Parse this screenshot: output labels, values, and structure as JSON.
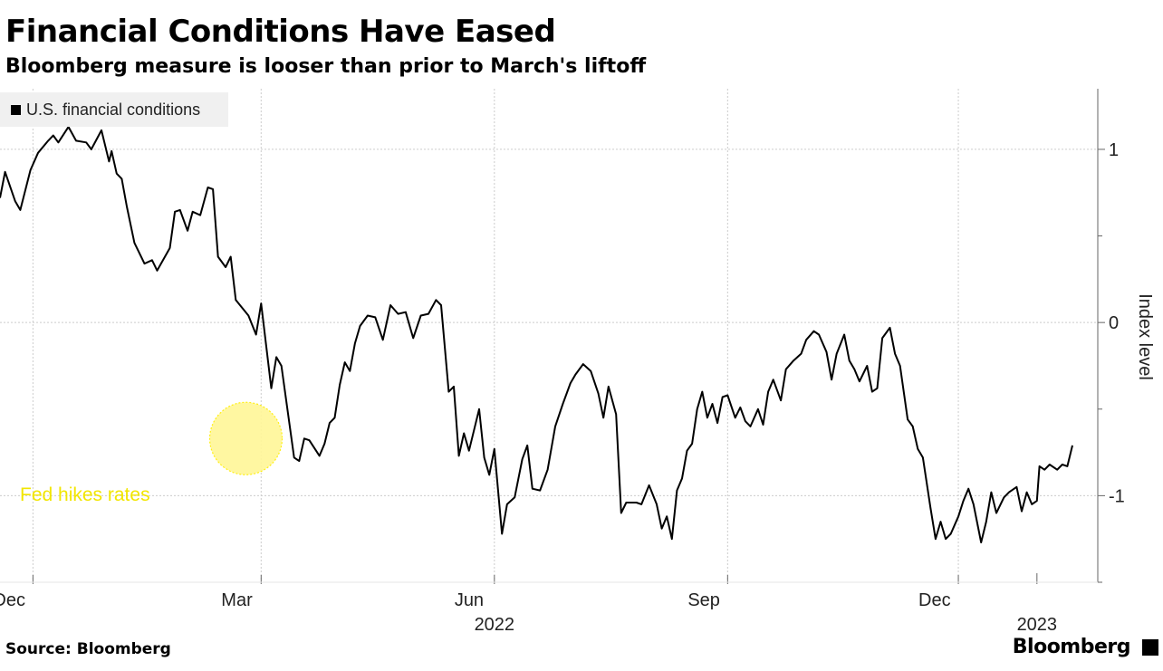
{
  "title": "Financial Conditions Have Eased",
  "subtitle": "Bloomberg measure is looser than prior to March's liftoff",
  "source": "Source: Bloomberg",
  "brand": "Bloomberg",
  "colors": {
    "line": "#000000",
    "annotation": "#ffee00",
    "grid": "#cccccc"
  },
  "chart_data": {
    "type": "line",
    "title": "Financial Conditions Have Eased",
    "subtitle": "Bloomberg measure is looser than prior to March's liftoff",
    "ylabel": "Index level",
    "ylim": [
      -1.5,
      1.35
    ],
    "yticks": [
      1,
      0,
      -1
    ],
    "ytick_labels": [
      "1",
      "0",
      "-1"
    ],
    "xlim": [
      "2021-11-18",
      "2023-01-25"
    ],
    "xticks": [
      {
        "date": "2021-12-01",
        "label": "Dec"
      },
      {
        "date": "2022-03-01",
        "label": "Mar"
      },
      {
        "date": "2022-06-01",
        "label": "Jun"
      },
      {
        "date": "2022-09-01",
        "label": "Sep"
      },
      {
        "date": "2022-12-01",
        "label": "Dec"
      }
    ],
    "year_labels": [
      {
        "date": "2022-06-01",
        "label": "2022"
      },
      {
        "date": "2023-01-01",
        "label": "2023"
      }
    ],
    "grid": true,
    "legend_position": "top-left",
    "annotation": {
      "label": "Fed hikes rates",
      "date": "2022-02-23",
      "value": -0.67
    },
    "series": [
      {
        "name": "U.S. financial conditions",
        "points": [
          [
            "2021-11-18",
            0.72
          ],
          [
            "2021-11-20",
            0.87
          ],
          [
            "2021-11-24",
            0.7
          ],
          [
            "2021-11-26",
            0.65
          ],
          [
            "2021-11-30",
            0.88
          ],
          [
            "2021-12-03",
            0.98
          ],
          [
            "2021-12-07",
            1.05
          ],
          [
            "2021-12-09",
            1.08
          ],
          [
            "2021-12-11",
            1.04
          ],
          [
            "2021-12-15",
            1.13
          ],
          [
            "2021-12-18",
            1.05
          ],
          [
            "2021-12-22",
            1.04
          ],
          [
            "2021-12-24",
            1.0
          ],
          [
            "2021-12-28",
            1.11
          ],
          [
            "2021-12-31",
            0.93
          ],
          [
            "2022-01-01",
            0.99
          ],
          [
            "2022-01-03",
            0.86
          ],
          [
            "2022-01-05",
            0.83
          ],
          [
            "2022-01-07",
            0.67
          ],
          [
            "2022-01-10",
            0.46
          ],
          [
            "2022-01-14",
            0.34
          ],
          [
            "2022-01-17",
            0.36
          ],
          [
            "2022-01-19",
            0.3
          ],
          [
            "2022-01-24",
            0.43
          ],
          [
            "2022-01-26",
            0.64
          ],
          [
            "2022-01-28",
            0.65
          ],
          [
            "2022-01-31",
            0.53
          ],
          [
            "2022-02-02",
            0.64
          ],
          [
            "2022-02-05",
            0.62
          ],
          [
            "2022-02-08",
            0.78
          ],
          [
            "2022-02-10",
            0.77
          ],
          [
            "2022-02-12",
            0.38
          ],
          [
            "2022-02-15",
            0.32
          ],
          [
            "2022-02-17",
            0.38
          ],
          [
            "2022-02-19",
            0.13
          ],
          [
            "2022-02-24",
            0.04
          ],
          [
            "2022-02-27",
            -0.07
          ],
          [
            "2022-03-01",
            0.11
          ],
          [
            "2022-03-05",
            -0.38
          ],
          [
            "2022-03-07",
            -0.2
          ],
          [
            "2022-03-09",
            -0.25
          ],
          [
            "2022-03-14",
            -0.78
          ],
          [
            "2022-03-16",
            -0.8
          ],
          [
            "2022-03-18",
            -0.67
          ],
          [
            "2022-03-20",
            -0.68
          ],
          [
            "2022-03-24",
            -0.77
          ],
          [
            "2022-03-26",
            -0.7
          ],
          [
            "2022-03-28",
            -0.58
          ],
          [
            "2022-03-30",
            -0.55
          ],
          [
            "2022-04-01",
            -0.36
          ],
          [
            "2022-04-03",
            -0.23
          ],
          [
            "2022-04-05",
            -0.28
          ],
          [
            "2022-04-07",
            -0.12
          ],
          [
            "2022-04-09",
            -0.02
          ],
          [
            "2022-04-12",
            0.04
          ],
          [
            "2022-04-15",
            0.03
          ],
          [
            "2022-04-18",
            -0.1
          ],
          [
            "2022-04-21",
            0.1
          ],
          [
            "2022-04-24",
            0.05
          ],
          [
            "2022-04-27",
            0.06
          ],
          [
            "2022-04-30",
            -0.09
          ],
          [
            "2022-05-03",
            0.04
          ],
          [
            "2022-05-06",
            0.05
          ],
          [
            "2022-05-09",
            0.13
          ],
          [
            "2022-05-11",
            0.1
          ],
          [
            "2022-05-14",
            -0.4
          ],
          [
            "2022-05-16",
            -0.37
          ],
          [
            "2022-05-18",
            -0.77
          ],
          [
            "2022-05-20",
            -0.64
          ],
          [
            "2022-05-22",
            -0.74
          ],
          [
            "2022-05-26",
            -0.5
          ],
          [
            "2022-05-28",
            -0.78
          ],
          [
            "2022-05-30",
            -0.88
          ],
          [
            "2022-06-01",
            -0.73
          ],
          [
            "2022-06-04",
            -1.22
          ],
          [
            "2022-06-06",
            -1.05
          ],
          [
            "2022-06-09",
            -1.01
          ],
          [
            "2022-06-12",
            -0.79
          ],
          [
            "2022-06-14",
            -0.71
          ],
          [
            "2022-06-16",
            -0.96
          ],
          [
            "2022-06-19",
            -0.97
          ],
          [
            "2022-06-22",
            -0.85
          ],
          [
            "2022-06-25",
            -0.6
          ],
          [
            "2022-06-28",
            -0.47
          ],
          [
            "2022-07-01",
            -0.35
          ],
          [
            "2022-07-03",
            -0.3
          ],
          [
            "2022-07-06",
            -0.24
          ],
          [
            "2022-07-09",
            -0.28
          ],
          [
            "2022-07-12",
            -0.41
          ],
          [
            "2022-07-14",
            -0.55
          ],
          [
            "2022-07-16",
            -0.37
          ],
          [
            "2022-07-19",
            -0.53
          ],
          [
            "2022-07-21",
            -1.1
          ],
          [
            "2022-07-23",
            -1.04
          ],
          [
            "2022-07-27",
            -1.04
          ],
          [
            "2022-07-29",
            -1.05
          ],
          [
            "2022-08-01",
            -0.94
          ],
          [
            "2022-08-04",
            -1.05
          ],
          [
            "2022-08-06",
            -1.19
          ],
          [
            "2022-08-08",
            -1.12
          ],
          [
            "2022-08-10",
            -1.25
          ],
          [
            "2022-08-12",
            -0.97
          ],
          [
            "2022-08-14",
            -0.9
          ],
          [
            "2022-08-16",
            -0.74
          ],
          [
            "2022-08-18",
            -0.7
          ],
          [
            "2022-08-20",
            -0.5
          ],
          [
            "2022-08-22",
            -0.4
          ],
          [
            "2022-08-24",
            -0.55
          ],
          [
            "2022-08-26",
            -0.47
          ],
          [
            "2022-08-28",
            -0.58
          ],
          [
            "2022-08-30",
            -0.43
          ],
          [
            "2022-09-01",
            -0.42
          ],
          [
            "2022-09-04",
            -0.55
          ],
          [
            "2022-09-06",
            -0.49
          ],
          [
            "2022-09-08",
            -0.57
          ],
          [
            "2022-09-10",
            -0.6
          ],
          [
            "2022-09-13",
            -0.5
          ],
          [
            "2022-09-15",
            -0.59
          ],
          [
            "2022-09-17",
            -0.4
          ],
          [
            "2022-09-19",
            -0.33
          ],
          [
            "2022-09-22",
            -0.45
          ],
          [
            "2022-09-24",
            -0.27
          ],
          [
            "2022-09-27",
            -0.22
          ],
          [
            "2022-09-30",
            -0.18
          ],
          [
            "2022-10-02",
            -0.1
          ],
          [
            "2022-10-05",
            -0.05
          ],
          [
            "2022-10-07",
            -0.07
          ],
          [
            "2022-10-10",
            -0.17
          ],
          [
            "2022-10-12",
            -0.33
          ],
          [
            "2022-10-14",
            -0.18
          ],
          [
            "2022-10-17",
            -0.07
          ],
          [
            "2022-10-19",
            -0.22
          ],
          [
            "2022-10-21",
            -0.27
          ],
          [
            "2022-10-23",
            -0.34
          ],
          [
            "2022-10-26",
            -0.25
          ],
          [
            "2022-10-28",
            -0.4
          ],
          [
            "2022-10-30",
            -0.38
          ],
          [
            "2022-11-01",
            -0.09
          ],
          [
            "2022-11-04",
            -0.03
          ],
          [
            "2022-11-06",
            -0.18
          ],
          [
            "2022-11-08",
            -0.25
          ],
          [
            "2022-11-11",
            -0.56
          ],
          [
            "2022-11-13",
            -0.6
          ],
          [
            "2022-11-15",
            -0.73
          ],
          [
            "2022-11-17",
            -0.78
          ],
          [
            "2022-11-20",
            -1.07
          ],
          [
            "2022-11-22",
            -1.25
          ],
          [
            "2022-11-24",
            -1.15
          ],
          [
            "2022-11-26",
            -1.25
          ],
          [
            "2022-11-28",
            -1.22
          ],
          [
            "2022-12-01",
            -1.12
          ],
          [
            "2022-12-03",
            -1.03
          ],
          [
            "2022-12-05",
            -0.96
          ],
          [
            "2022-12-07",
            -1.05
          ],
          [
            "2022-12-10",
            -1.27
          ],
          [
            "2022-12-12",
            -1.15
          ],
          [
            "2022-12-14",
            -0.98
          ],
          [
            "2022-12-16",
            -1.1
          ],
          [
            "2022-12-19",
            -1.01
          ],
          [
            "2022-12-21",
            -0.98
          ],
          [
            "2022-12-24",
            -0.95
          ],
          [
            "2022-12-26",
            -1.09
          ],
          [
            "2022-12-28",
            -0.98
          ],
          [
            "2022-12-30",
            -1.05
          ],
          [
            "2023-01-01",
            -1.03
          ],
          [
            "2023-01-02",
            -0.83
          ],
          [
            "2023-01-04",
            -0.85
          ],
          [
            "2023-01-06",
            -0.82
          ],
          [
            "2023-01-09",
            -0.85
          ],
          [
            "2023-01-11",
            -0.82
          ],
          [
            "2023-01-13",
            -0.83
          ],
          [
            "2023-01-15",
            -0.71
          ]
        ]
      }
    ]
  }
}
